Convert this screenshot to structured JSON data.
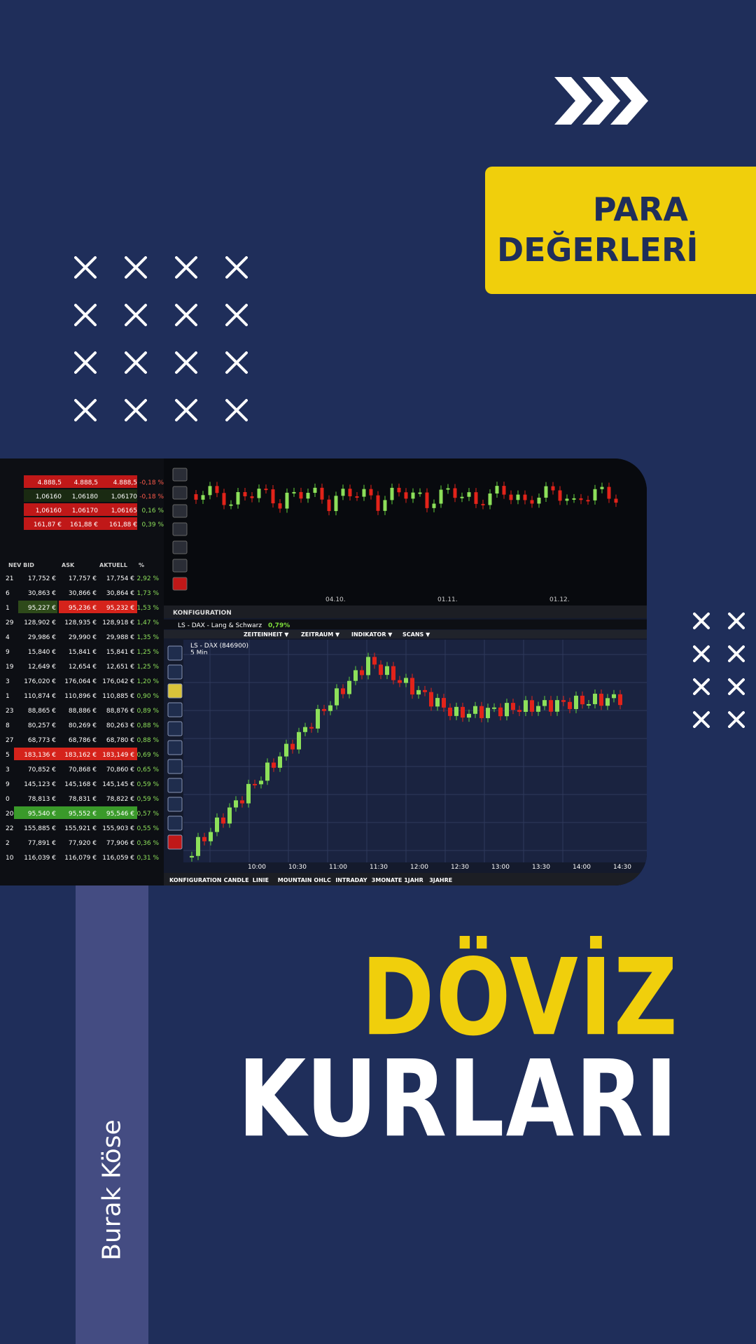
{
  "badge": {
    "line1": "PARA",
    "line2": "DEĞERLERİ"
  },
  "title": {
    "line1": "DÖVİZ",
    "line2": "KURLARI"
  },
  "author": "Burak Köse",
  "colors": {
    "background": "#1f2e5a",
    "accent": "#f0cf0c",
    "band": "#444c82",
    "text": "#ffffff"
  },
  "decor": {
    "chevrons": "triple-chevron-right-icon",
    "crosses": "cross-icon"
  },
  "photo": {
    "top_chart_dates": [
      "04.10.",
      "01.11.",
      "01.12."
    ],
    "config_label": "KONFIGURATION",
    "window_title": "LS - DAX - Lang & Schwarz",
    "window_change": "0,79%",
    "menu": [
      "ZEITEINHEIT ▼",
      "ZEITRAUM ▼",
      "INDIKATOR ▼",
      "SCANS ▼"
    ],
    "chart_label": "LS - DAX (846900)",
    "chart_interval": "5 Min",
    "times": [
      "10:00",
      "10:30",
      "11:00",
      "11:30",
      "12:00",
      "12:30",
      "13:00",
      "13:30",
      "14:00",
      "14:30"
    ],
    "bottom_tabs": [
      "KONFIGURATION",
      "CANDLE",
      "LINIE",
      "MOUNTAIN",
      "OHLC",
      "INTRADAY",
      "3MONATE",
      "1JAHR",
      "3JAHRE"
    ],
    "table_headers": [
      "NEV BID",
      "ASK",
      "AKTUELL",
      "%"
    ],
    "table_rows": [
      [
        "21",
        "17,752 €",
        "17,757 €",
        "17,754 €",
        "2,92 %"
      ],
      [
        "6",
        "30,863 €",
        "30,866 €",
        "30,864 €",
        "1,73 %"
      ],
      [
        "1",
        "95,227 €",
        "95,236 €",
        "95,232 €",
        "1,53 %"
      ],
      [
        "29",
        "128,902 €",
        "128,935 €",
        "128,918 €",
        "1,47 %"
      ],
      [
        "4",
        "29,986 €",
        "29,990 €",
        "29,988 €",
        "1,35 %"
      ],
      [
        "9",
        "15,840 €",
        "15,841 €",
        "15,841 €",
        "1,25 %"
      ],
      [
        "19",
        "12,649 €",
        "12,654 €",
        "12,651 €",
        "1,25 %"
      ],
      [
        "3",
        "176,020 €",
        "176,064 €",
        "176,042 €",
        "1,20 %"
      ],
      [
        "1",
        "110,874 €",
        "110,896 €",
        "110,885 €",
        "0,90 %"
      ],
      [
        "23",
        "88,865 €",
        "88,886 €",
        "88,876 €",
        "0,89 %"
      ],
      [
        "8",
        "80,257 €",
        "80,269 €",
        "80,263 €",
        "0,88 %"
      ],
      [
        "27",
        "68,773 €",
        "68,786 €",
        "68,780 €",
        "0,88 %"
      ],
      [
        "5",
        "183,136 €",
        "183,162 €",
        "183,149 €",
        "0,69 %"
      ],
      [
        "3",
        "70,852 €",
        "70,868 €",
        "70,860 €",
        "0,65 %"
      ],
      [
        "9",
        "145,123 €",
        "145,168 €",
        "145,145 €",
        "0,59 %"
      ],
      [
        "0",
        "78,813 €",
        "78,831 €",
        "78,822 €",
        "0,59 %"
      ],
      [
        "20",
        "95,540 €",
        "95,552 €",
        "95,546 €",
        "0,57 %"
      ],
      [
        "22",
        "155,885 €",
        "155,921 €",
        "155,903 €",
        "0,55 %"
      ],
      [
        "2",
        "77,891 €",
        "77,920 €",
        "77,906 €",
        "0,36 %"
      ],
      [
        "10",
        "116,039 €",
        "116,079 €",
        "116,059 €",
        "0,31 %"
      ]
    ],
    "top_rows": [
      [
        "4.888,5",
        "4.888,5",
        "4.888,5",
        "-0,18 %"
      ],
      [
        "1,06160",
        "1,06180",
        "1,06170",
        "-0,18 %"
      ],
      [
        "1,06160",
        "1,06170",
        "1,06165",
        "0,16 %"
      ],
      [
        "161,87 €",
        "161,88 €",
        "161,88 €",
        "0,39 %"
      ]
    ]
  }
}
